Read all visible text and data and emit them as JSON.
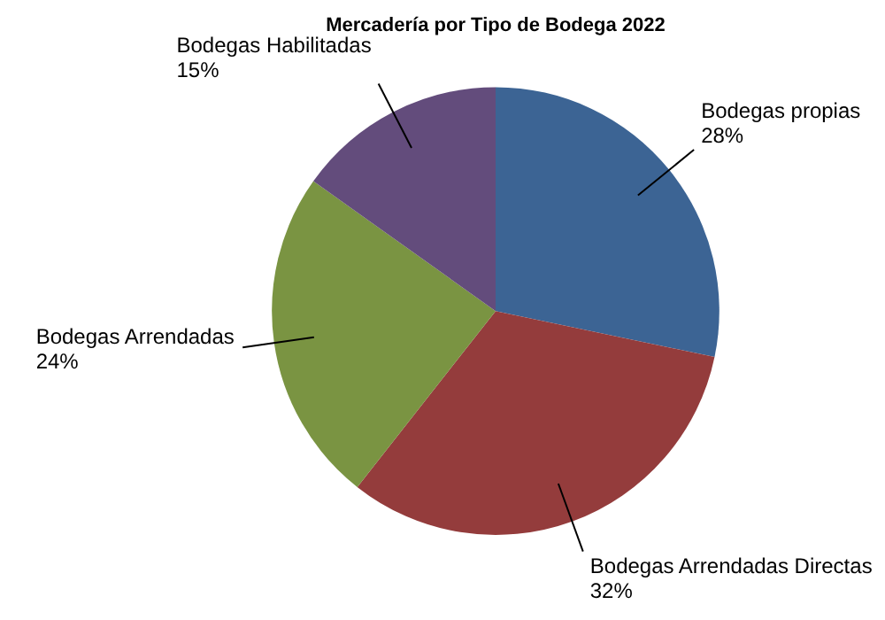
{
  "chart_data": {
    "type": "pie",
    "title": "Mercadería por Tipo de Bodega 2022",
    "categories": [
      "Bodegas propias",
      "Bodegas Arrendadas Directas",
      "Bodegas Arrendadas",
      "Bodegas Habilitadas"
    ],
    "values": [
      28,
      32,
      24,
      15
    ],
    "value_labels": [
      "28%",
      "32%",
      "24%",
      "15%"
    ],
    "colors": [
      "#3c6494",
      "#943c3c",
      "#7a9442",
      "#634c7c"
    ],
    "legend": false
  }
}
